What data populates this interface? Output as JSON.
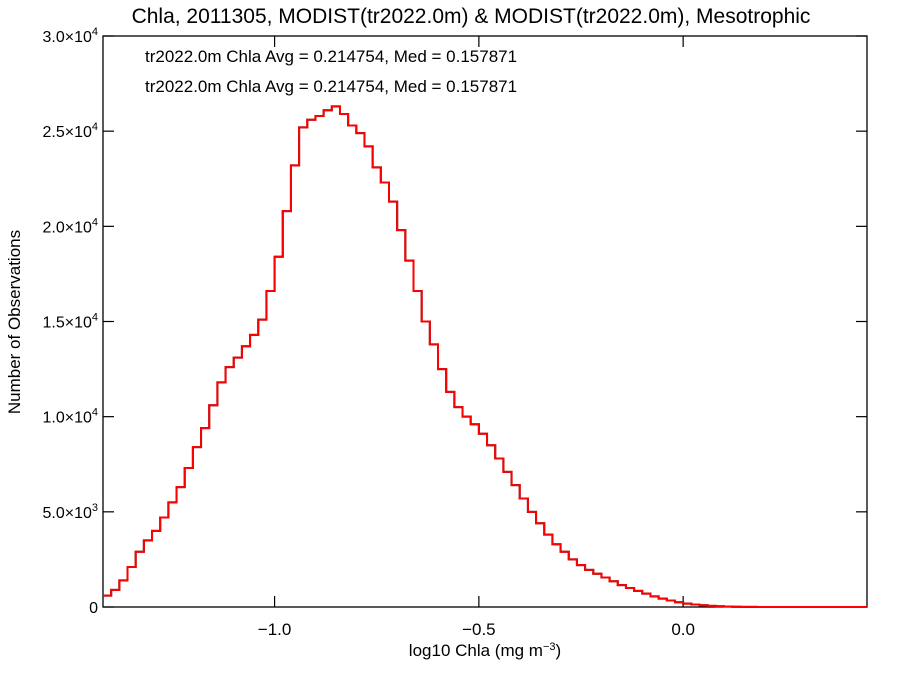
{
  "chart_data": {
    "type": "line",
    "title": "Chla, 2011305, MODIST(tr2022.0m) & MODIST(tr2022.0m), Mesotrophic",
    "xlabel": "log10 Chla (mg m⁻³)",
    "ylabel": "Number of Observations",
    "xlim": [
      -1.42,
      0.45
    ],
    "ylim": [
      0,
      30000
    ],
    "x_ticks": [
      {
        "value": -1.0,
        "label": "−1.0"
      },
      {
        "value": -0.5,
        "label": "−0.5"
      },
      {
        "value": 0.0,
        "label": "0.0"
      }
    ],
    "y_ticks": [
      {
        "value": 0,
        "mant": "0",
        "exp": ""
      },
      {
        "value": 5000,
        "mant": "5.0×10",
        "exp": "3"
      },
      {
        "value": 10000,
        "mant": "1.0×10",
        "exp": "4"
      },
      {
        "value": 15000,
        "mant": "1.5×10",
        "exp": "4"
      },
      {
        "value": 20000,
        "mant": "2.0×10",
        "exp": "4"
      },
      {
        "value": 25000,
        "mant": "2.5×10",
        "exp": "4"
      },
      {
        "value": 30000,
        "mant": "3.0×10",
        "exp": "4"
      }
    ],
    "annotations": [
      {
        "text": "tr2022.0m Chla Avg = 0.214754, Med = 0.157871",
        "color": "#000000"
      },
      {
        "text": "tr2022.0m Chla Avg = 0.214754, Med = 0.157871",
        "color": "#ff0000"
      }
    ],
    "series": [
      {
        "color": "#000000",
        "step": true,
        "x": [
          -1.42,
          -1.4,
          -1.38,
          -1.36,
          -1.34,
          -1.32,
          -1.3,
          -1.28,
          -1.26,
          -1.24,
          -1.22,
          -1.2,
          -1.18,
          -1.16,
          -1.14,
          -1.12,
          -1.1,
          -1.08,
          -1.06,
          -1.04,
          -1.02,
          -1.0,
          -0.98,
          -0.96,
          -0.94,
          -0.92,
          -0.9,
          -0.88,
          -0.86,
          -0.84,
          -0.82,
          -0.8,
          -0.78,
          -0.76,
          -0.74,
          -0.72,
          -0.7,
          -0.68,
          -0.66,
          -0.64,
          -0.62,
          -0.6,
          -0.58,
          -0.56,
          -0.54,
          -0.52,
          -0.5,
          -0.48,
          -0.46,
          -0.44,
          -0.42,
          -0.4,
          -0.38,
          -0.36,
          -0.34,
          -0.32,
          -0.3,
          -0.28,
          -0.26,
          -0.24,
          -0.22,
          -0.2,
          -0.18,
          -0.16,
          -0.14,
          -0.12,
          -0.1,
          -0.08,
          -0.06,
          -0.04,
          -0.02,
          0.0,
          0.02,
          0.04,
          0.06,
          0.08,
          0.1,
          0.12,
          0.14,
          0.16,
          0.18,
          0.2,
          0.22,
          0.24,
          0.26,
          0.28,
          0.3,
          0.32,
          0.34,
          0.36,
          0.38,
          0.4,
          0.42,
          0.44
        ],
        "y": [
          600,
          900,
          1400,
          2100,
          2900,
          3500,
          4000,
          4700,
          5500,
          6300,
          7300,
          8400,
          9400,
          10600,
          11800,
          12600,
          13100,
          13700,
          14300,
          15100,
          16600,
          18400,
          20800,
          23200,
          25200,
          25600,
          25800,
          26100,
          26300,
          25900,
          25300,
          24900,
          24200,
          23100,
          22300,
          21300,
          19800,
          18200,
          16600,
          15000,
          13800,
          12500,
          11300,
          10500,
          10000,
          9600,
          9100,
          8500,
          7800,
          7100,
          6400,
          5700,
          5000,
          4400,
          3800,
          3300,
          2900,
          2500,
          2200,
          1950,
          1750,
          1550,
          1350,
          1150,
          1000,
          850,
          700,
          560,
          440,
          340,
          250,
          180,
          130,
          90,
          60,
          40,
          25,
          15,
          8,
          4,
          2,
          1,
          0,
          0,
          0,
          0,
          0,
          0,
          0,
          0,
          0,
          0,
          0,
          0
        ]
      },
      {
        "color": "#ff0000",
        "step": true,
        "x": [
          -1.42,
          -1.4,
          -1.38,
          -1.36,
          -1.34,
          -1.32,
          -1.3,
          -1.28,
          -1.26,
          -1.24,
          -1.22,
          -1.2,
          -1.18,
          -1.16,
          -1.14,
          -1.12,
          -1.1,
          -1.08,
          -1.06,
          -1.04,
          -1.02,
          -1.0,
          -0.98,
          -0.96,
          -0.94,
          -0.92,
          -0.9,
          -0.88,
          -0.86,
          -0.84,
          -0.82,
          -0.8,
          -0.78,
          -0.76,
          -0.74,
          -0.72,
          -0.7,
          -0.68,
          -0.66,
          -0.64,
          -0.62,
          -0.6,
          -0.58,
          -0.56,
          -0.54,
          -0.52,
          -0.5,
          -0.48,
          -0.46,
          -0.44,
          -0.42,
          -0.4,
          -0.38,
          -0.36,
          -0.34,
          -0.32,
          -0.3,
          -0.28,
          -0.26,
          -0.24,
          -0.22,
          -0.2,
          -0.18,
          -0.16,
          -0.14,
          -0.12,
          -0.1,
          -0.08,
          -0.06,
          -0.04,
          -0.02,
          0.0,
          0.02,
          0.04,
          0.06,
          0.08,
          0.1,
          0.12,
          0.14,
          0.16,
          0.18,
          0.2,
          0.22,
          0.24,
          0.26,
          0.28,
          0.3,
          0.32,
          0.34,
          0.36,
          0.38,
          0.4,
          0.42,
          0.44
        ],
        "y": [
          600,
          900,
          1400,
          2100,
          2900,
          3500,
          4000,
          4700,
          5500,
          6300,
          7300,
          8400,
          9400,
          10600,
          11800,
          12600,
          13100,
          13700,
          14300,
          15100,
          16600,
          18400,
          20800,
          23200,
          25200,
          25600,
          25800,
          26100,
          26300,
          25900,
          25300,
          24900,
          24200,
          23100,
          22300,
          21300,
          19800,
          18200,
          16600,
          15000,
          13800,
          12500,
          11300,
          10500,
          10000,
          9600,
          9100,
          8500,
          7800,
          7100,
          6400,
          5700,
          5000,
          4400,
          3800,
          3300,
          2900,
          2500,
          2200,
          1950,
          1750,
          1550,
          1350,
          1150,
          1000,
          850,
          700,
          560,
          440,
          340,
          250,
          180,
          130,
          90,
          60,
          40,
          25,
          15,
          8,
          4,
          2,
          1,
          0,
          0,
          0,
          0,
          0,
          0,
          0,
          0,
          0,
          0,
          0,
          0
        ]
      }
    ]
  }
}
